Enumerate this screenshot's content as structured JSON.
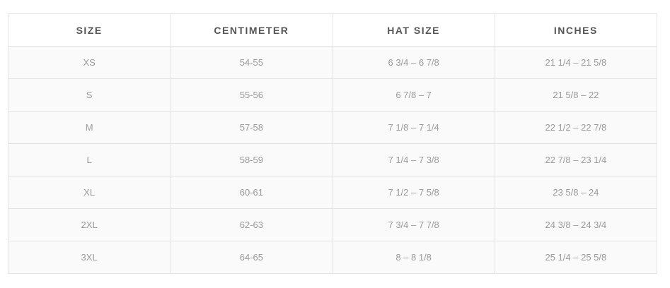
{
  "table": {
    "header": [
      "SIZE",
      "CENTIMETER",
      "HAT SIZE",
      "INCHES"
    ],
    "rows": [
      [
        "XS",
        "54-55",
        "6 3/4 – 6 7/8",
        "21 1/4 – 21 5/8"
      ],
      [
        "S",
        "55-56",
        "6 7/8 – 7",
        "21 5/8 – 22"
      ],
      [
        "M",
        "57-58",
        "7 1/8 – 7 1/4",
        "22 1/2 – 22 7/8"
      ],
      [
        "L",
        "58-59",
        "7 1/4 – 7 3/8",
        "22 7/8 – 23 1/4"
      ],
      [
        "XL",
        "60-61",
        "7 1/2 – 7 5/8",
        "23 5/8 – 24"
      ],
      [
        "2XL",
        "62-63",
        "7 3/4 – 7 7/8",
        "24 3/8 – 24 3/4"
      ],
      [
        "3XL",
        "64-65",
        "8 – 8 1/8",
        "25 1/4 – 25 5/8"
      ]
    ]
  }
}
